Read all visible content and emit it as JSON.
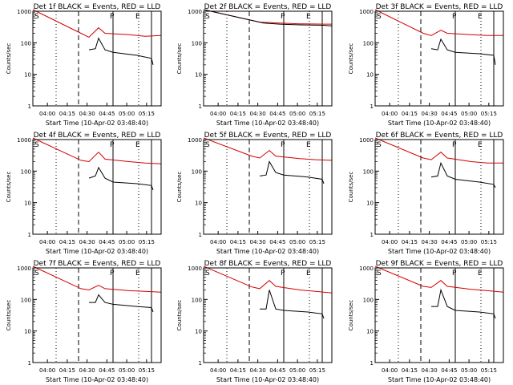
{
  "chart_data": {
    "type": "line",
    "title_template": "Det {d} BLACK = Events, RED = LLD",
    "xlabel": "Start Time (10-Apr-02 03:48:40)",
    "ylabel": "Counts/sec",
    "yscale": "log",
    "ylim": [
      1,
      1000
    ],
    "ytick_labels": [
      "1",
      "10",
      "100",
      "1000"
    ],
    "xlim": [
      "03:49",
      "05:26"
    ],
    "xtick_labels": [
      "04:00",
      "04:15",
      "04:30",
      "04:45",
      "05:00",
      "05:15"
    ],
    "markers": {
      "S": "S",
      "P": "P",
      "E": "E"
    },
    "series_colors": {
      "events": "#000000",
      "lld": "#d40000"
    },
    "panels": [
      {
        "detector": "1f",
        "events": [
          [
            0,
            0
          ],
          [
            70,
            60
          ],
          [
            78,
            65
          ],
          [
            82,
            140
          ],
          [
            90,
            60
          ],
          [
            100,
            50
          ],
          [
            130,
            40
          ],
          [
            148,
            32
          ],
          [
            150,
            20
          ]
        ],
        "lld": [
          [
            0,
            1500
          ],
          [
            60,
            200
          ],
          [
            70,
            150
          ],
          [
            82,
            300
          ],
          [
            90,
            200
          ],
          [
            120,
            180
          ],
          [
            140,
            160
          ],
          [
            160,
            170
          ]
        ],
        "lines": {
          "dashed": 57,
          "solid1": 100,
          "solid2": 148
        }
      },
      {
        "detector": "2f",
        "events": [
          [
            0,
            1500
          ],
          [
            75,
            420
          ],
          [
            95,
            390
          ],
          [
            120,
            370
          ],
          [
            150,
            360
          ],
          [
            160,
            340
          ]
        ],
        "lld": [
          [
            0,
            1500
          ],
          [
            70,
            450
          ],
          [
            95,
            420
          ],
          [
            120,
            400
          ],
          [
            150,
            390
          ],
          [
            160,
            390
          ]
        ],
        "lines": {
          "dashed": 57,
          "solid1": 100,
          "solid2": 148
        }
      },
      {
        "detector": "3f",
        "events": [
          [
            0,
            0
          ],
          [
            70,
            65
          ],
          [
            78,
            60
          ],
          [
            82,
            130
          ],
          [
            90,
            60
          ],
          [
            100,
            50
          ],
          [
            130,
            45
          ],
          [
            148,
            40
          ],
          [
            150,
            20
          ]
        ],
        "lld": [
          [
            0,
            1500
          ],
          [
            60,
            200
          ],
          [
            70,
            170
          ],
          [
            82,
            250
          ],
          [
            90,
            200
          ],
          [
            120,
            180
          ],
          [
            140,
            170
          ],
          [
            160,
            170
          ]
        ],
        "lines": {
          "dashed": 57,
          "solid1": 100,
          "solid2": 148
        }
      },
      {
        "detector": "4f",
        "events": [
          [
            0,
            0
          ],
          [
            70,
            60
          ],
          [
            78,
            70
          ],
          [
            82,
            130
          ],
          [
            90,
            60
          ],
          [
            100,
            45
          ],
          [
            130,
            40
          ],
          [
            148,
            35
          ],
          [
            150,
            25
          ]
        ],
        "lld": [
          [
            0,
            1500
          ],
          [
            60,
            220
          ],
          [
            70,
            200
          ],
          [
            82,
            400
          ],
          [
            90,
            240
          ],
          [
            120,
            200
          ],
          [
            140,
            180
          ],
          [
            160,
            170
          ]
        ],
        "lines": {
          "dashed": 57,
          "solid1": 100,
          "solid2": 148
        }
      },
      {
        "detector": "5f",
        "events": [
          [
            0,
            0
          ],
          [
            70,
            70
          ],
          [
            78,
            75
          ],
          [
            82,
            200
          ],
          [
            90,
            90
          ],
          [
            100,
            75
          ],
          [
            130,
            65
          ],
          [
            148,
            55
          ],
          [
            150,
            40
          ]
        ],
        "lld": [
          [
            0,
            1500
          ],
          [
            60,
            300
          ],
          [
            70,
            260
          ],
          [
            82,
            450
          ],
          [
            90,
            300
          ],
          [
            120,
            250
          ],
          [
            140,
            230
          ],
          [
            160,
            220
          ]
        ],
        "lines": {
          "dashed": 57,
          "solid1": 100,
          "solid2": 148
        }
      },
      {
        "detector": "6f",
        "events": [
          [
            0,
            0
          ],
          [
            70,
            65
          ],
          [
            78,
            70
          ],
          [
            82,
            180
          ],
          [
            90,
            70
          ],
          [
            100,
            55
          ],
          [
            130,
            45
          ],
          [
            148,
            38
          ],
          [
            150,
            30
          ]
        ],
        "lld": [
          [
            0,
            1500
          ],
          [
            60,
            260
          ],
          [
            70,
            230
          ],
          [
            82,
            400
          ],
          [
            90,
            260
          ],
          [
            120,
            200
          ],
          [
            140,
            180
          ],
          [
            160,
            180
          ]
        ],
        "lines": {
          "dashed": 57,
          "solid1": 100,
          "solid2": 148
        }
      },
      {
        "detector": "7f",
        "events": [
          [
            0,
            0
          ],
          [
            70,
            80
          ],
          [
            78,
            80
          ],
          [
            82,
            140
          ],
          [
            90,
            80
          ],
          [
            100,
            70
          ],
          [
            130,
            60
          ],
          [
            148,
            55
          ],
          [
            150,
            40
          ]
        ],
        "lld": [
          [
            0,
            1500
          ],
          [
            60,
            220
          ],
          [
            70,
            200
          ],
          [
            82,
            280
          ],
          [
            90,
            220
          ],
          [
            120,
            190
          ],
          [
            140,
            180
          ],
          [
            160,
            170
          ]
        ],
        "lines": {
          "dashed": 57,
          "solid1": 100,
          "solid2": 148
        }
      },
      {
        "detector": "8f",
        "events": [
          [
            0,
            0
          ],
          [
            70,
            50
          ],
          [
            78,
            50
          ],
          [
            82,
            200
          ],
          [
            90,
            50
          ],
          [
            100,
            45
          ],
          [
            130,
            40
          ],
          [
            148,
            35
          ],
          [
            150,
            25
          ]
        ],
        "lld": [
          [
            0,
            1500
          ],
          [
            60,
            250
          ],
          [
            70,
            220
          ],
          [
            82,
            400
          ],
          [
            90,
            260
          ],
          [
            120,
            200
          ],
          [
            140,
            180
          ],
          [
            160,
            160
          ]
        ],
        "lines": {
          "dashed": 57,
          "solid1": 100,
          "solid2": 148
        }
      },
      {
        "detector": "9f",
        "events": [
          [
            0,
            0
          ],
          [
            70,
            60
          ],
          [
            78,
            60
          ],
          [
            82,
            200
          ],
          [
            90,
            60
          ],
          [
            100,
            45
          ],
          [
            130,
            40
          ],
          [
            148,
            35
          ],
          [
            150,
            25
          ]
        ],
        "lld": [
          [
            0,
            1500
          ],
          [
            60,
            260
          ],
          [
            70,
            240
          ],
          [
            82,
            400
          ],
          [
            90,
            260
          ],
          [
            120,
            210
          ],
          [
            140,
            190
          ],
          [
            160,
            170
          ]
        ],
        "lines": {
          "dashed": 57,
          "solid1": 100,
          "solid2": 148
        }
      }
    ]
  }
}
